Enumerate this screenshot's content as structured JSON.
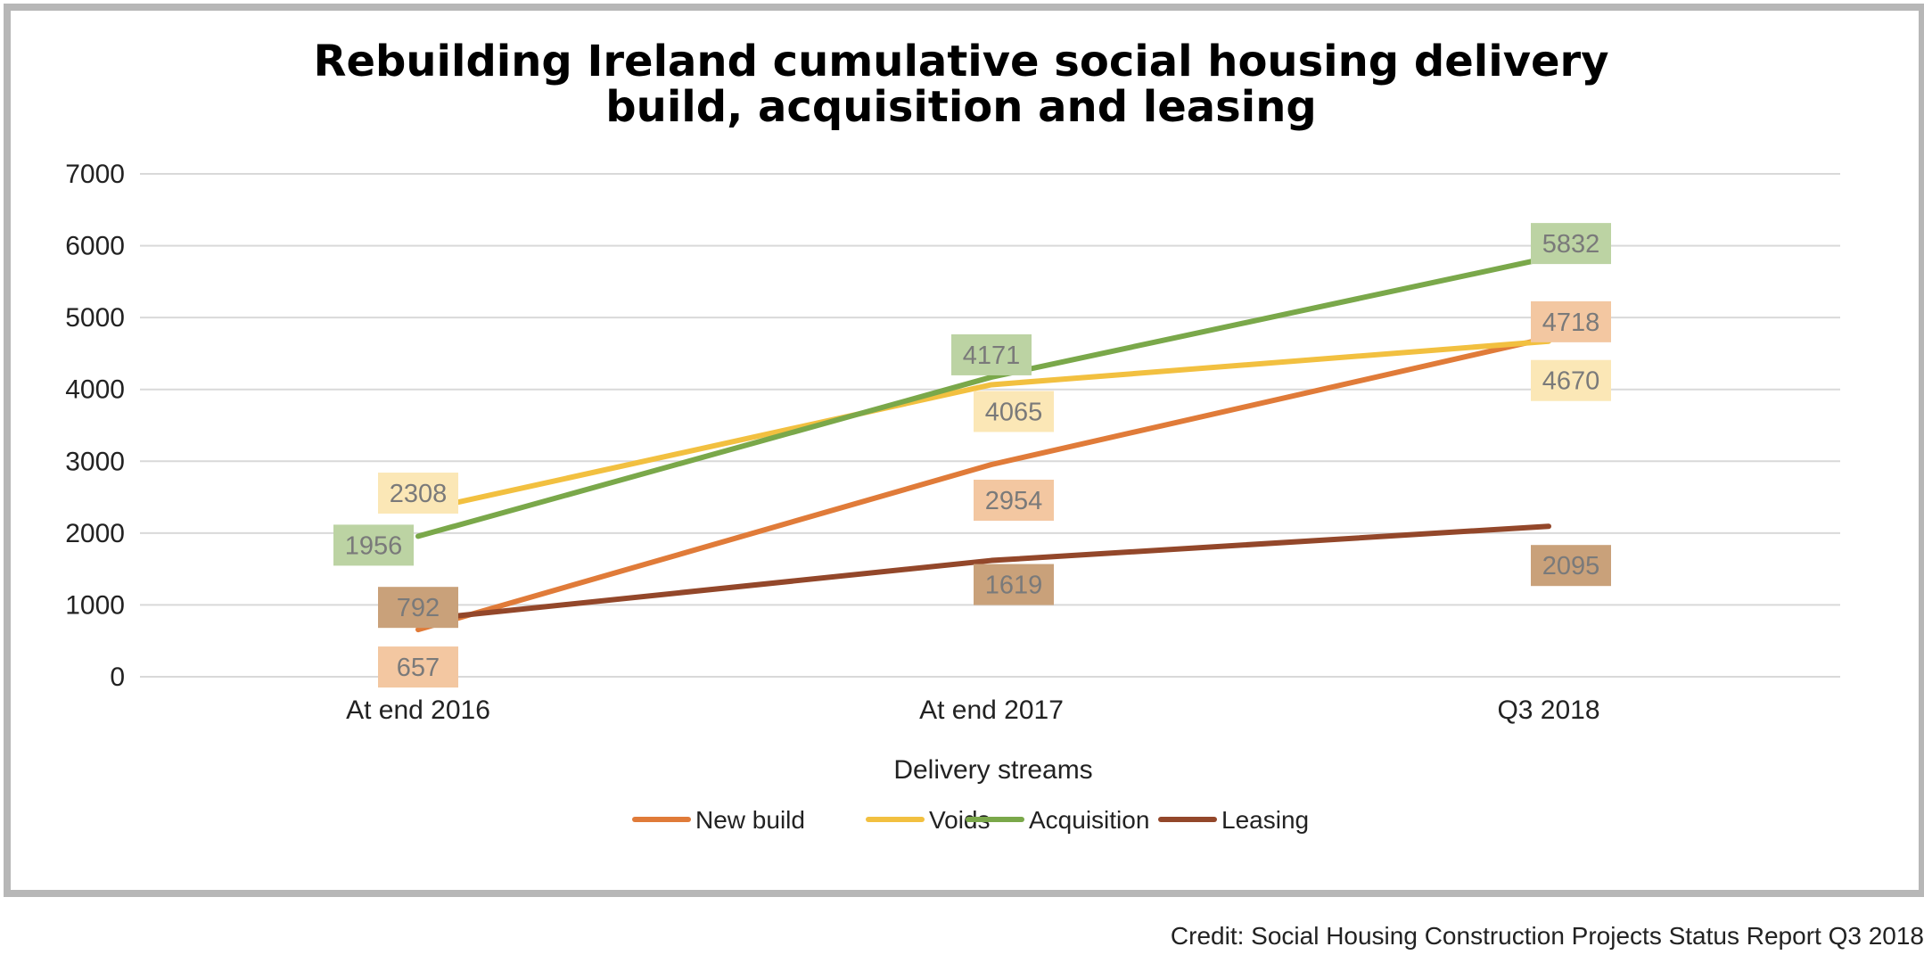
{
  "chart_data": {
    "type": "line",
    "title_lines": [
      "Rebuilding Ireland cumulative social housing delivery",
      "build, acquisition and leasing"
    ],
    "categories": [
      "At end 2016",
      "At end 2017",
      "Q3 2018"
    ],
    "xlabel": "Delivery streams",
    "ylabel": "",
    "ylim": [
      0,
      7000
    ],
    "yticks": [
      0,
      1000,
      2000,
      3000,
      4000,
      5000,
      6000,
      7000
    ],
    "grid": true,
    "legend_position": "bottom",
    "series": [
      {
        "name": "New build",
        "values": [
          657,
          2954,
          4718
        ],
        "color": "#e07b39",
        "label_bg": "#f3c7a1"
      },
      {
        "name": "Voids",
        "values": [
          2308,
          4065,
          4670
        ],
        "color": "#f2c040",
        "label_bg": "#fbe7b6"
      },
      {
        "name": "Acquisition",
        "values": [
          1956,
          4171,
          5832
        ],
        "color": "#7aa84a",
        "label_bg": "#bcd3a3"
      },
      {
        "name": "Leasing",
        "values": [
          792,
          1619,
          2095
        ],
        "color": "#93472a",
        "label_bg": "#c9a17a"
      }
    ]
  },
  "credit": "Credit: Social Housing Construction Projects Status Report Q3 2018"
}
